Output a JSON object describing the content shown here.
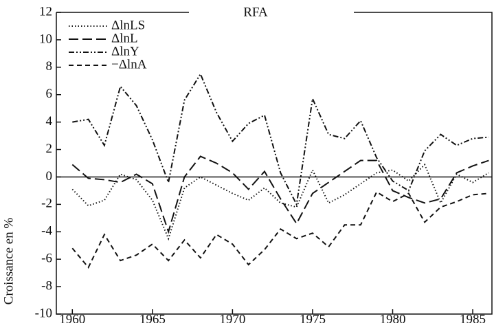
{
  "chart_data": {
    "type": "line",
    "title": "RFA",
    "y_label": "Croissance en %",
    "x": [
      1960,
      1961,
      1962,
      1963,
      1964,
      1965,
      1966,
      1967,
      1968,
      1969,
      1970,
      1971,
      1972,
      1973,
      1974,
      1975,
      1976,
      1977,
      1978,
      1979,
      1980,
      1981,
      1982,
      1983,
      1984,
      1985,
      1986
    ],
    "series": [
      {
        "name": "ΔlnLS",
        "color": "#111111",
        "dash": "dotted",
        "values": [
          -0.9,
          -2.1,
          -1.7,
          0.2,
          -0.2,
          -1.7,
          -4.5,
          -0.8,
          0.0,
          -0.6,
          -1.2,
          -1.7,
          -0.8,
          -1.9,
          -2.2,
          0.5,
          -1.9,
          -1.3,
          -0.5,
          0.3,
          0.5,
          -0.3,
          0.9,
          -1.9,
          0.2,
          -0.4,
          0.3
        ]
      },
      {
        "name": "ΔlnL",
        "color": "#111111",
        "dash": "long-dash",
        "values": [
          0.9,
          -0.1,
          -0.2,
          -0.4,
          0.2,
          -0.5,
          -4.0,
          0.0,
          1.5,
          1.0,
          0.3,
          -0.9,
          0.4,
          -1.6,
          -3.4,
          -1.2,
          -0.4,
          0.4,
          1.2,
          1.2,
          -1.0,
          -1.5,
          -1.9,
          -1.6,
          0.3,
          0.8,
          1.2
        ]
      },
      {
        "name": "ΔlnY",
        "color": "#111111",
        "dash": "dash-dot",
        "values": [
          4.0,
          4.2,
          2.3,
          6.6,
          5.2,
          2.7,
          -0.4,
          5.6,
          7.5,
          4.7,
          2.6,
          3.9,
          4.5,
          0.3,
          -2.0,
          5.7,
          3.1,
          2.8,
          4.1,
          1.4,
          -0.3,
          -1.0,
          1.9,
          3.1,
          2.3,
          2.8,
          2.9
        ]
      },
      {
        "name": "−ΔlnA",
        "color": "#111111",
        "dash": "short-dash",
        "values": [
          -5.2,
          -6.6,
          -4.2,
          -6.1,
          -5.7,
          -4.9,
          -6.1,
          -4.6,
          -5.9,
          -4.2,
          -4.9,
          -6.4,
          -5.3,
          -3.8,
          -4.5,
          -4.1,
          -5.1,
          -3.5,
          -3.5,
          -1.1,
          -1.8,
          -1.2,
          -3.3,
          -2.2,
          -1.8,
          -1.3,
          -1.2
        ]
      }
    ],
    "xlim": [
      1959,
      1986.2
    ],
    "ylim": [
      -10,
      12
    ],
    "xticks": [
      1960,
      1965,
      1970,
      1975,
      1980,
      1985
    ],
    "yticks": [
      -10,
      -8,
      -6,
      -4,
      -2,
      0,
      2,
      4,
      6,
      8,
      10,
      12
    ],
    "zero_line": true,
    "legend": "top-left"
  }
}
